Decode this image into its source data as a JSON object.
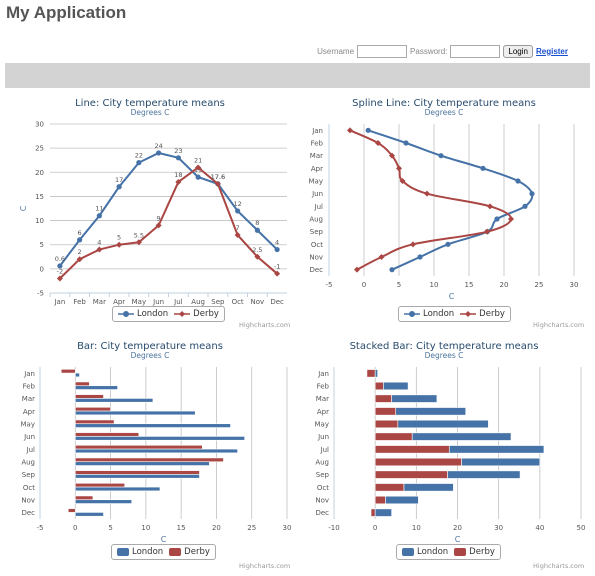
{
  "app": {
    "title": "My Application"
  },
  "login": {
    "username_label": "Username",
    "password_label": "Password:",
    "username_value": "",
    "password_value": "",
    "login_button": "Login",
    "register_link": "Register"
  },
  "credits": "Highcharts.com",
  "colors": {
    "London": "#4572a7",
    "Derby": "#aa4643",
    "nav": "#d3d3d3",
    "title": "#274b6d",
    "subtitle": "#4d759e"
  },
  "legend": {
    "london": "London",
    "derby": "Derby"
  },
  "chart_data": [
    {
      "type": "line",
      "title": "Line: City temperature means",
      "subtitle": "Degrees C",
      "ylabel": "C",
      "xlabel": "",
      "categories": [
        "Jan",
        "Feb",
        "Mar",
        "Apr",
        "May",
        "Jun",
        "Jul",
        "Aug",
        "Sep",
        "Oct",
        "Nov",
        "Dec"
      ],
      "ylim": [
        -5,
        30
      ],
      "yticks": [
        -5,
        0,
        5,
        10,
        15,
        20,
        25,
        30
      ],
      "data_labels": true,
      "series": [
        {
          "name": "London",
          "values": [
            0.6,
            6,
            11,
            17,
            22,
            24,
            23,
            19,
            17.6,
            12,
            8,
            4
          ]
        },
        {
          "name": "Derby",
          "values": [
            -2,
            2,
            4,
            5,
            5.5,
            9,
            18,
            21,
            17.6,
            7,
            2.5,
            -1
          ]
        }
      ]
    },
    {
      "type": "line",
      "title": "Spline Line: City temperature means",
      "subtitle": "Degrees C",
      "xlabel": "C",
      "ylabel": "",
      "categories": [
        "Jan",
        "Feb",
        "Mar",
        "Apr",
        "May",
        "Jun",
        "Jul",
        "Aug",
        "Sep",
        "Oct",
        "Nov",
        "Dec"
      ],
      "xlim": [
        -5,
        30
      ],
      "xticks": [
        -5,
        0,
        5,
        10,
        15,
        20,
        25,
        30
      ],
      "inverted": true,
      "spline": true,
      "series": [
        {
          "name": "London",
          "values": [
            0.6,
            6,
            11,
            17,
            22,
            24,
            23,
            19,
            17.6,
            12,
            8,
            4
          ]
        },
        {
          "name": "Derby",
          "values": [
            -2,
            2,
            4,
            5,
            5.5,
            9,
            18,
            21,
            17.6,
            7,
            2.5,
            -1
          ]
        }
      ]
    },
    {
      "type": "bar",
      "title": "Bar: City temperature means",
      "subtitle": "Degrees C",
      "xlabel": "C",
      "ylabel": "",
      "categories": [
        "Jan",
        "Feb",
        "Mar",
        "Apr",
        "May",
        "Jun",
        "Jul",
        "Aug",
        "Sep",
        "Oct",
        "Nov",
        "Dec"
      ],
      "xlim": [
        -5,
        30
      ],
      "xticks": [
        -5,
        0,
        5,
        10,
        15,
        20,
        25,
        30
      ],
      "series": [
        {
          "name": "London",
          "values": [
            0.6,
            6,
            11,
            17,
            22,
            24,
            23,
            19,
            17.6,
            12,
            8,
            4
          ]
        },
        {
          "name": "Derby",
          "values": [
            -2,
            2,
            4,
            5,
            5.5,
            9,
            18,
            21,
            17.6,
            7,
            2.5,
            -1
          ]
        }
      ]
    },
    {
      "type": "bar",
      "stacked": true,
      "title": "Stacked Bar: City temperature means",
      "subtitle": "Degrees C",
      "xlabel": "C",
      "ylabel": "",
      "categories": [
        "Jan",
        "Feb",
        "Mar",
        "Apr",
        "May",
        "Jun",
        "Jul",
        "Aug",
        "Sep",
        "Oct",
        "Nov",
        "Dec"
      ],
      "xlim": [
        -10,
        50
      ],
      "xticks": [
        -10,
        0,
        10,
        20,
        30,
        40,
        50
      ],
      "series": [
        {
          "name": "London",
          "values": [
            0.6,
            6,
            11,
            17,
            22,
            24,
            23,
            19,
            17.6,
            12,
            8,
            4
          ]
        },
        {
          "name": "Derby",
          "values": [
            -2,
            2,
            4,
            5,
            5.5,
            9,
            18,
            21,
            17.6,
            7,
            2.5,
            -1
          ]
        }
      ]
    }
  ]
}
